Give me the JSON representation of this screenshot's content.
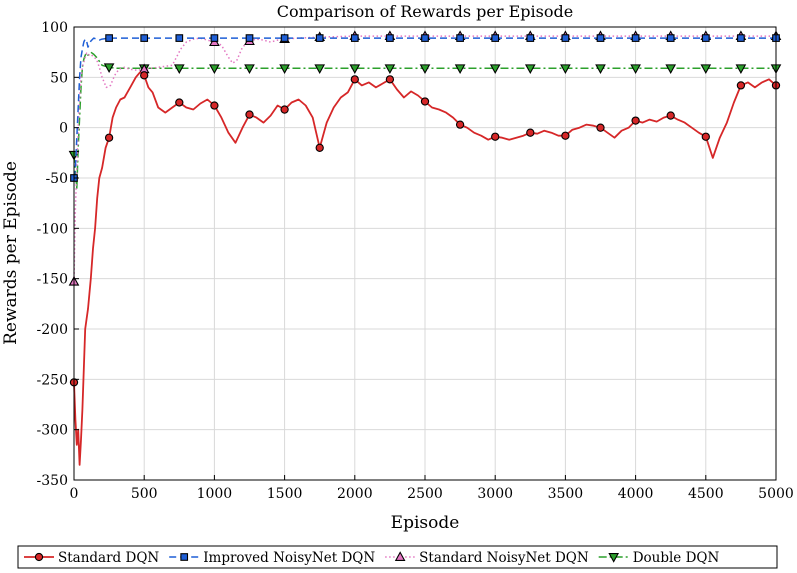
{
  "chart_data": {
    "type": "line",
    "title": "Comparison of Rewards per Episode",
    "xlabel": "Episode",
    "ylabel": "Rewards per Episode",
    "xlim": [
      0,
      5000
    ],
    "ylim": [
      -350,
      100
    ],
    "xticks": [
      0,
      500,
      1000,
      1500,
      2000,
      2500,
      3000,
      3500,
      4000,
      4500,
      5000
    ],
    "yticks": [
      -350,
      -300,
      -250,
      -200,
      -150,
      -100,
      -50,
      0,
      50,
      100
    ],
    "grid": true,
    "legend_position": "bottom",
    "series": [
      {
        "name": "Standard DQN",
        "color": "#d62728",
        "line_style": "solid",
        "marker": "circle",
        "marker_fill": "#d62728",
        "x": [
          0,
          10,
          20,
          30,
          40,
          50,
          60,
          70,
          80,
          90,
          100,
          110,
          120,
          135,
          150,
          165,
          180,
          200,
          225,
          250,
          275,
          300,
          330,
          360,
          400,
          440,
          470,
          500,
          530,
          560,
          600,
          650,
          700,
          750,
          800,
          850,
          900,
          950,
          1000,
          1050,
          1100,
          1150,
          1200,
          1250,
          1300,
          1350,
          1400,
          1450,
          1500,
          1550,
          1600,
          1650,
          1700,
          1750,
          1800,
          1850,
          1900,
          1950,
          2000,
          2050,
          2100,
          2150,
          2200,
          2250,
          2300,
          2350,
          2400,
          2450,
          2500,
          2550,
          2600,
          2650,
          2700,
          2750,
          2800,
          2850,
          2900,
          2950,
          3000,
          3050,
          3100,
          3150,
          3200,
          3250,
          3300,
          3350,
          3400,
          3450,
          3500,
          3550,
          3600,
          3650,
          3700,
          3750,
          3800,
          3850,
          3900,
          3950,
          4000,
          4050,
          4100,
          4150,
          4200,
          4250,
          4300,
          4350,
          4400,
          4450,
          4500,
          4550,
          4600,
          4650,
          4700,
          4750,
          4800,
          4850,
          4900,
          4950,
          5000
        ],
        "y": [
          -253,
          -290,
          -315,
          -300,
          -335,
          -310,
          -280,
          -240,
          -200,
          -190,
          -180,
          -165,
          -150,
          -120,
          -100,
          -70,
          -50,
          -40,
          -20,
          -10,
          10,
          20,
          28,
          30,
          40,
          50,
          55,
          52,
          40,
          35,
          20,
          15,
          20,
          25,
          20,
          18,
          24,
          28,
          22,
          10,
          -5,
          -15,
          0,
          13,
          10,
          5,
          12,
          22,
          18,
          25,
          28,
          22,
          10,
          -20,
          5,
          20,
          30,
          35,
          48,
          42,
          45,
          40,
          44,
          48,
          38,
          30,
          36,
          32,
          26,
          20,
          18,
          15,
          10,
          3,
          0,
          -5,
          -8,
          -12,
          -9,
          -10,
          -12,
          -10,
          -8,
          -5,
          -6,
          -3,
          -5,
          -8,
          -8,
          -2,
          0,
          3,
          2,
          0,
          -5,
          -10,
          -3,
          0,
          7,
          5,
          8,
          6,
          10,
          12,
          8,
          5,
          0,
          -5,
          -9,
          -30,
          -10,
          5,
          25,
          42,
          45,
          40,
          45,
          48,
          42
        ]
      },
      {
        "name": "Improved NoisyNet DQN",
        "color": "#1f5fd6",
        "line_style": "dashed",
        "marker": "square",
        "marker_fill": "#1f5fd6",
        "x": [
          0,
          10,
          20,
          30,
          40,
          50,
          60,
          70,
          80,
          90,
          100,
          120,
          140,
          160,
          180,
          200,
          250,
          300,
          400,
          500,
          750,
          1000,
          1250,
          1500,
          1750,
          2000,
          2250,
          2500,
          2750,
          3000,
          3250,
          3500,
          3750,
          4000,
          4250,
          4500,
          4750,
          5000
        ],
        "y": [
          -50,
          -40,
          -10,
          20,
          50,
          70,
          78,
          85,
          88,
          86,
          80,
          86,
          89,
          88,
          87,
          88,
          89,
          89,
          89,
          89,
          89,
          89,
          89,
          89,
          89,
          89,
          89,
          89,
          89,
          89,
          89,
          89,
          89,
          89,
          89,
          89,
          89,
          89
        ]
      },
      {
        "name": "Standard NoisyNet DQN",
        "color": "#e377c2",
        "line_style": "dotted",
        "marker": "triangle-up",
        "marker_fill": "#e377c2",
        "x": [
          0,
          10,
          20,
          30,
          40,
          50,
          60,
          70,
          80,
          90,
          100,
          120,
          140,
          160,
          180,
          200,
          230,
          260,
          290,
          320,
          360,
          400,
          450,
          500,
          550,
          600,
          650,
          700,
          730,
          760,
          800,
          850,
          900,
          950,
          1000,
          1050,
          1100,
          1130,
          1160,
          1200,
          1250,
          1300,
          1350,
          1400,
          1450,
          1500,
          1600,
          1750,
          2000,
          2250,
          2500,
          2750,
          3000,
          3250,
          3500,
          3750,
          4000,
          4250,
          4500,
          4750,
          5000
        ],
        "y": [
          -153,
          -80,
          -40,
          0,
          30,
          50,
          60,
          65,
          70,
          74,
          72,
          73,
          70,
          68,
          60,
          50,
          40,
          42,
          52,
          58,
          60,
          58,
          57,
          58,
          59,
          60,
          61,
          62,
          70,
          78,
          85,
          88,
          89,
          87,
          85,
          82,
          70,
          64,
          67,
          80,
          86,
          88,
          87,
          85,
          87,
          88,
          89,
          90,
          91,
          91,
          91,
          91,
          91,
          91,
          91,
          91,
          91,
          91,
          91,
          91,
          91
        ]
      },
      {
        "name": "Double DQN",
        "color": "#2ca02c",
        "line_style": "dashdot",
        "marker": "triangle-down",
        "marker_fill": "#2ca02c",
        "x": [
          0,
          10,
          20,
          30,
          40,
          50,
          60,
          70,
          80,
          90,
          100,
          120,
          140,
          160,
          180,
          200,
          250,
          300,
          350,
          400,
          500,
          750,
          1000,
          1250,
          1500,
          1750,
          2000,
          2250,
          2500,
          2750,
          3000,
          3250,
          3500,
          3750,
          4000,
          4250,
          4500,
          4750,
          5000
        ],
        "y": [
          -27,
          -45,
          -60,
          -20,
          10,
          40,
          60,
          68,
          72,
          74,
          72,
          75,
          73,
          70,
          66,
          62,
          60,
          59,
          59,
          59,
          59,
          59,
          59,
          59,
          59,
          59,
          59,
          59,
          59,
          59,
          59,
          59,
          59,
          59,
          59,
          59,
          59,
          59,
          59
        ]
      }
    ]
  }
}
